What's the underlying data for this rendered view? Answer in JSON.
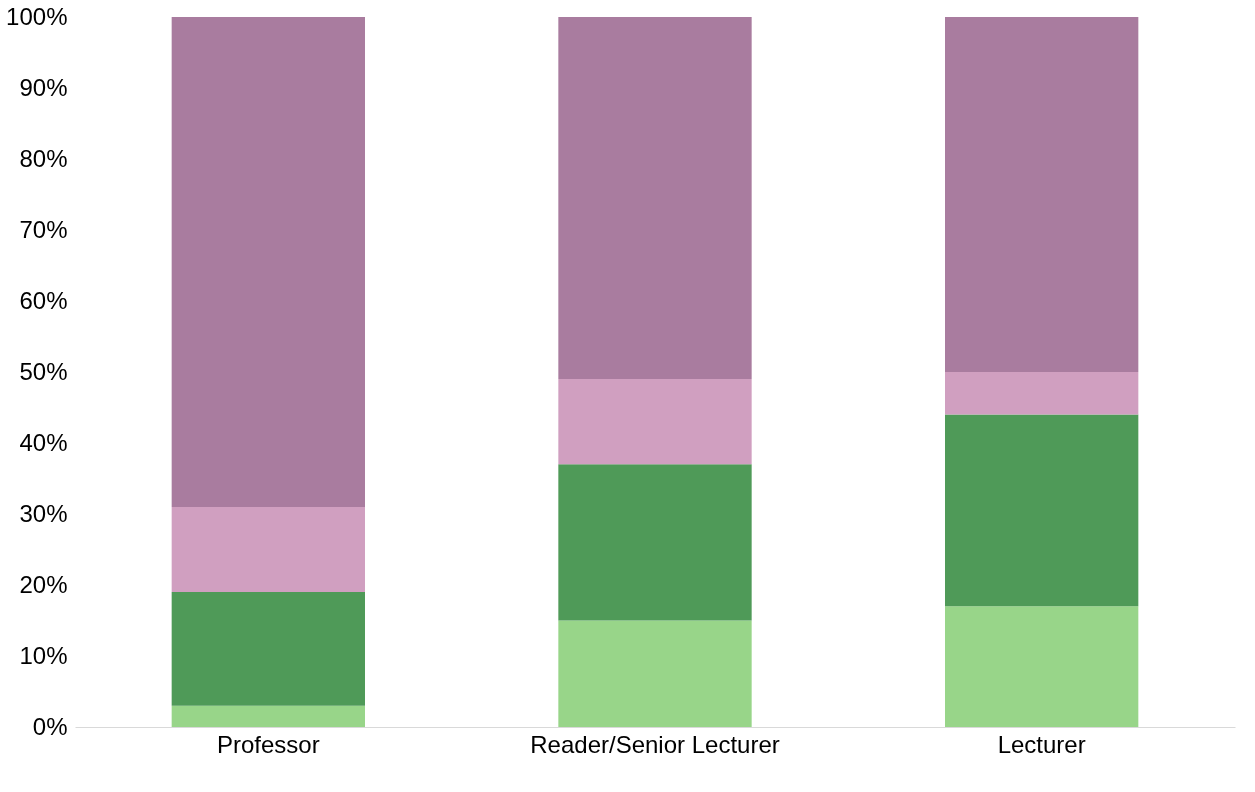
{
  "chart_data": {
    "type": "bar",
    "stacked": true,
    "categories": [
      "Professor",
      "Reader/Senior Lecturer",
      "Lecturer"
    ],
    "series": [
      {
        "color": "#98d589",
        "values": [
          3,
          15,
          17
        ]
      },
      {
        "color": "#4f9a58",
        "values": [
          16,
          22,
          27
        ]
      },
      {
        "color": "#d09fc0",
        "values": [
          12,
          12,
          6
        ]
      },
      {
        "color": "#a97c9f",
        "values": [
          69,
          51,
          50
        ]
      }
    ],
    "ylim": [
      0,
      100
    ],
    "yticks": [
      {
        "value": 0,
        "label": "0%"
      },
      {
        "value": 10,
        "label": "10%"
      },
      {
        "value": 20,
        "label": "20%"
      },
      {
        "value": 30,
        "label": "30%"
      },
      {
        "value": 40,
        "label": "40%"
      },
      {
        "value": 50,
        "label": "50%"
      },
      {
        "value": 60,
        "label": "60%"
      },
      {
        "value": 70,
        "label": "70%"
      },
      {
        "value": 80,
        "label": "80%"
      },
      {
        "value": 90,
        "label": "90%"
      },
      {
        "value": 100,
        "label": "100%"
      }
    ],
    "grid": false,
    "legend": false
  }
}
